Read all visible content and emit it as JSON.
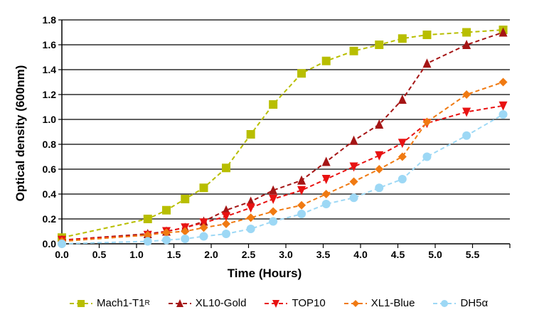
{
  "chart_data": {
    "type": "line",
    "title": "",
    "xlabel": "Time (Hours)",
    "ylabel": "Optical density (600nm)",
    "xlim": [
      0,
      6.0
    ],
    "ylim": [
      0,
      1.8
    ],
    "x_ticks": [
      "0.0",
      "0.5",
      "1.0",
      "1.5",
      "2.0",
      "2.5",
      "3.0",
      "3.5",
      "4.0",
      "4.5",
      "5.0",
      "5.5"
    ],
    "y_ticks": [
      "0.0",
      "0.2",
      "0.4",
      "0.6",
      "0.8",
      "1.0",
      "1.2",
      "1.4",
      "1.6",
      "1.8"
    ],
    "grid": "horizontal",
    "legend_position": "bottom",
    "x": [
      0,
      1.15,
      1.4,
      1.65,
      1.9,
      2.2,
      2.53,
      2.83,
      3.21,
      3.54,
      3.91,
      4.25,
      4.56,
      4.89,
      5.42,
      5.91
    ],
    "series": [
      {
        "name": "Mach1-T1",
        "name_superscript": "R",
        "color": "#b8be00",
        "marker": "square",
        "values": [
          0.05,
          0.2,
          0.27,
          0.36,
          0.45,
          0.61,
          0.88,
          1.12,
          1.37,
          1.47,
          1.55,
          1.6,
          1.65,
          1.68,
          1.7,
          1.72
        ]
      },
      {
        "name": "XL10-Gold",
        "color": "#a51515",
        "marker": "triangle-up",
        "values": [
          0.03,
          0.08,
          0.1,
          0.13,
          0.18,
          0.27,
          0.34,
          0.43,
          0.51,
          0.66,
          0.83,
          0.96,
          1.16,
          1.45,
          1.6,
          1.7
        ]
      },
      {
        "name": "TOP10",
        "color": "#e81212",
        "marker": "triangle-down",
        "values": [
          0.03,
          0.07,
          0.1,
          0.13,
          0.17,
          0.22,
          0.29,
          0.36,
          0.43,
          0.52,
          0.62,
          0.71,
          0.81,
          0.97,
          1.06,
          1.11
        ]
      },
      {
        "name": "XL1-Blue",
        "color": "#f07a12",
        "marker": "diamond",
        "values": [
          0.02,
          0.07,
          0.09,
          0.1,
          0.13,
          0.16,
          0.21,
          0.26,
          0.31,
          0.4,
          0.5,
          0.6,
          0.7,
          0.98,
          1.2,
          1.3
        ]
      },
      {
        "name": "DH5α",
        "color": "#9dd8f5",
        "marker": "circle",
        "values": [
          0.0,
          0.02,
          0.03,
          0.04,
          0.06,
          0.08,
          0.12,
          0.18,
          0.24,
          0.32,
          0.37,
          0.45,
          0.52,
          0.7,
          0.87,
          1.04
        ]
      }
    ]
  }
}
